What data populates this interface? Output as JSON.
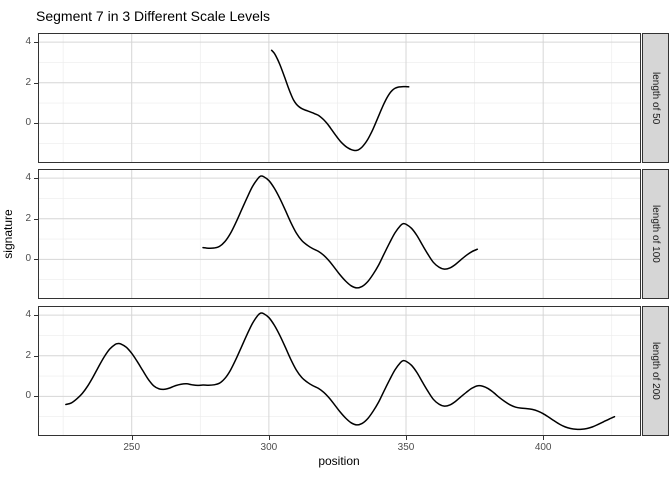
{
  "title": "Segment 7 in 3 Different Scale Levels",
  "axes": {
    "x_label": "position",
    "y_label": "signature"
  },
  "colors": {
    "line": "#000000",
    "panel_border": "#333333",
    "grid_major": "#d6d6d6",
    "grid_minor": "#ececec",
    "strip_fill": "#d6d6d6",
    "tick_mark": "#333333",
    "tick_label": "#4d4d4d"
  },
  "chart_data": {
    "type": "line",
    "title": "Segment 7 in 3 Different Scale Levels",
    "xlabel": "position",
    "ylabel": "signature",
    "facet_labels": [
      "length of 50",
      "length of 100",
      "length of 200"
    ],
    "xlim": [
      216.2,
      435.3
    ],
    "ylim": [
      -1.9,
      4.4
    ],
    "x_major": [
      250,
      300,
      350,
      400
    ],
    "x_minor": [
      225,
      275,
      325,
      375,
      425
    ],
    "y_major": [
      4,
      2,
      0
    ],
    "y_minor": [
      3,
      1,
      -1
    ],
    "grid": true,
    "legend": "none",
    "panels": [
      {
        "strip": "length of 50",
        "points": [
          [
            301,
            3.6
          ],
          [
            302,
            3.45
          ],
          [
            303,
            3.2
          ],
          [
            304,
            2.9
          ],
          [
            305,
            2.55
          ],
          [
            306,
            2.18
          ],
          [
            307,
            1.8
          ],
          [
            308,
            1.45
          ],
          [
            309,
            1.15
          ],
          [
            310,
            0.95
          ],
          [
            311,
            0.82
          ],
          [
            312,
            0.73
          ],
          [
            313,
            0.67
          ],
          [
            314,
            0.62
          ],
          [
            315,
            0.57
          ],
          [
            316,
            0.52
          ],
          [
            317,
            0.46
          ],
          [
            318,
            0.4
          ],
          [
            319,
            0.3
          ],
          [
            320,
            0.18
          ],
          [
            321,
            0.03
          ],
          [
            322,
            -0.14
          ],
          [
            323,
            -0.33
          ],
          [
            324,
            -0.52
          ],
          [
            325,
            -0.7
          ],
          [
            326,
            -0.87
          ],
          [
            327,
            -1.01
          ],
          [
            328,
            -1.13
          ],
          [
            329,
            -1.22
          ],
          [
            330,
            -1.29
          ],
          [
            331,
            -1.33
          ],
          [
            332,
            -1.33
          ],
          [
            333,
            -1.27
          ],
          [
            334,
            -1.16
          ],
          [
            335,
            -1.0
          ],
          [
            336,
            -0.8
          ],
          [
            337,
            -0.55
          ],
          [
            338,
            -0.27
          ],
          [
            339,
            0.04
          ],
          [
            340,
            0.36
          ],
          [
            341,
            0.68
          ],
          [
            342,
            0.98
          ],
          [
            343,
            1.25
          ],
          [
            344,
            1.47
          ],
          [
            345,
            1.63
          ],
          [
            346,
            1.73
          ],
          [
            347,
            1.78
          ],
          [
            348,
            1.8
          ],
          [
            349,
            1.81
          ],
          [
            350,
            1.81
          ],
          [
            351,
            1.8
          ]
        ]
      },
      {
        "strip": "length of 100",
        "points": [
          [
            276,
            0.58
          ],
          [
            278,
            0.55
          ],
          [
            280,
            0.56
          ],
          [
            282,
            0.64
          ],
          [
            284,
            0.88
          ],
          [
            286,
            1.28
          ],
          [
            288,
            1.82
          ],
          [
            290,
            2.42
          ],
          [
            292,
            3.02
          ],
          [
            294,
            3.58
          ],
          [
            296,
            3.98
          ],
          [
            297,
            4.1
          ],
          [
            298,
            4.08
          ],
          [
            300,
            3.88
          ],
          [
            302,
            3.5
          ],
          [
            304,
            3.0
          ],
          [
            306,
            2.42
          ],
          [
            308,
            1.82
          ],
          [
            310,
            1.3
          ],
          [
            312,
            0.93
          ],
          [
            314,
            0.7
          ],
          [
            316,
            0.53
          ],
          [
            318,
            0.4
          ],
          [
            320,
            0.2
          ],
          [
            322,
            -0.08
          ],
          [
            324,
            -0.42
          ],
          [
            326,
            -0.77
          ],
          [
            328,
            -1.07
          ],
          [
            330,
            -1.3
          ],
          [
            332,
            -1.4
          ],
          [
            334,
            -1.33
          ],
          [
            336,
            -1.1
          ],
          [
            338,
            -0.73
          ],
          [
            340,
            -0.28
          ],
          [
            342,
            0.27
          ],
          [
            344,
            0.81
          ],
          [
            346,
            1.31
          ],
          [
            348,
            1.67
          ],
          [
            349,
            1.76
          ],
          [
            350,
            1.73
          ],
          [
            352,
            1.53
          ],
          [
            354,
            1.17
          ],
          [
            356,
            0.7
          ],
          [
            358,
            0.25
          ],
          [
            360,
            -0.15
          ],
          [
            362,
            -0.38
          ],
          [
            364,
            -0.48
          ],
          [
            366,
            -0.42
          ],
          [
            368,
            -0.25
          ],
          [
            370,
            -0.02
          ],
          [
            372,
            0.2
          ],
          [
            374,
            0.38
          ],
          [
            376,
            0.5
          ]
        ]
      },
      {
        "strip": "length of 200",
        "points": [
          [
            226,
            -0.4
          ],
          [
            228,
            -0.32
          ],
          [
            230,
            -0.12
          ],
          [
            232,
            0.15
          ],
          [
            234,
            0.52
          ],
          [
            236,
            0.98
          ],
          [
            238,
            1.48
          ],
          [
            240,
            1.95
          ],
          [
            242,
            2.33
          ],
          [
            244,
            2.56
          ],
          [
            245,
            2.6
          ],
          [
            246,
            2.58
          ],
          [
            248,
            2.42
          ],
          [
            250,
            2.12
          ],
          [
            252,
            1.72
          ],
          [
            254,
            1.28
          ],
          [
            256,
            0.85
          ],
          [
            258,
            0.52
          ],
          [
            260,
            0.37
          ],
          [
            262,
            0.35
          ],
          [
            264,
            0.42
          ],
          [
            266,
            0.53
          ],
          [
            268,
            0.6
          ],
          [
            270,
            0.62
          ],
          [
            272,
            0.57
          ],
          [
            274,
            0.54
          ],
          [
            276,
            0.56
          ],
          [
            278,
            0.55
          ],
          [
            280,
            0.57
          ],
          [
            282,
            0.65
          ],
          [
            284,
            0.89
          ],
          [
            286,
            1.29
          ],
          [
            288,
            1.83
          ],
          [
            290,
            2.43
          ],
          [
            292,
            3.03
          ],
          [
            294,
            3.59
          ],
          [
            296,
            3.99
          ],
          [
            297,
            4.1
          ],
          [
            298,
            4.08
          ],
          [
            300,
            3.88
          ],
          [
            302,
            3.5
          ],
          [
            304,
            3.0
          ],
          [
            306,
            2.42
          ],
          [
            308,
            1.82
          ],
          [
            310,
            1.3
          ],
          [
            312,
            0.93
          ],
          [
            314,
            0.7
          ],
          [
            316,
            0.53
          ],
          [
            318,
            0.4
          ],
          [
            320,
            0.2
          ],
          [
            322,
            -0.08
          ],
          [
            324,
            -0.42
          ],
          [
            326,
            -0.77
          ],
          [
            328,
            -1.07
          ],
          [
            330,
            -1.3
          ],
          [
            332,
            -1.4
          ],
          [
            334,
            -1.33
          ],
          [
            336,
            -1.1
          ],
          [
            338,
            -0.73
          ],
          [
            340,
            -0.28
          ],
          [
            342,
            0.27
          ],
          [
            344,
            0.81
          ],
          [
            346,
            1.31
          ],
          [
            348,
            1.67
          ],
          [
            349,
            1.76
          ],
          [
            350,
            1.73
          ],
          [
            352,
            1.53
          ],
          [
            354,
            1.17
          ],
          [
            356,
            0.7
          ],
          [
            358,
            0.25
          ],
          [
            360,
            -0.15
          ],
          [
            362,
            -0.38
          ],
          [
            364,
            -0.48
          ],
          [
            366,
            -0.42
          ],
          [
            368,
            -0.25
          ],
          [
            370,
            -0.02
          ],
          [
            372,
            0.2
          ],
          [
            374,
            0.4
          ],
          [
            376,
            0.52
          ],
          [
            378,
            0.5
          ],
          [
            380,
            0.38
          ],
          [
            382,
            0.18
          ],
          [
            384,
            -0.05
          ],
          [
            386,
            -0.25
          ],
          [
            388,
            -0.42
          ],
          [
            390,
            -0.53
          ],
          [
            392,
            -0.58
          ],
          [
            394,
            -0.6
          ],
          [
            396,
            -0.64
          ],
          [
            398,
            -0.72
          ],
          [
            400,
            -0.85
          ],
          [
            402,
            -1.02
          ],
          [
            404,
            -1.2
          ],
          [
            406,
            -1.37
          ],
          [
            408,
            -1.5
          ],
          [
            410,
            -1.58
          ],
          [
            412,
            -1.62
          ],
          [
            414,
            -1.62
          ],
          [
            416,
            -1.58
          ],
          [
            418,
            -1.5
          ],
          [
            420,
            -1.38
          ],
          [
            422,
            -1.25
          ],
          [
            424,
            -1.12
          ],
          [
            426,
            -1.0
          ]
        ]
      }
    ]
  }
}
